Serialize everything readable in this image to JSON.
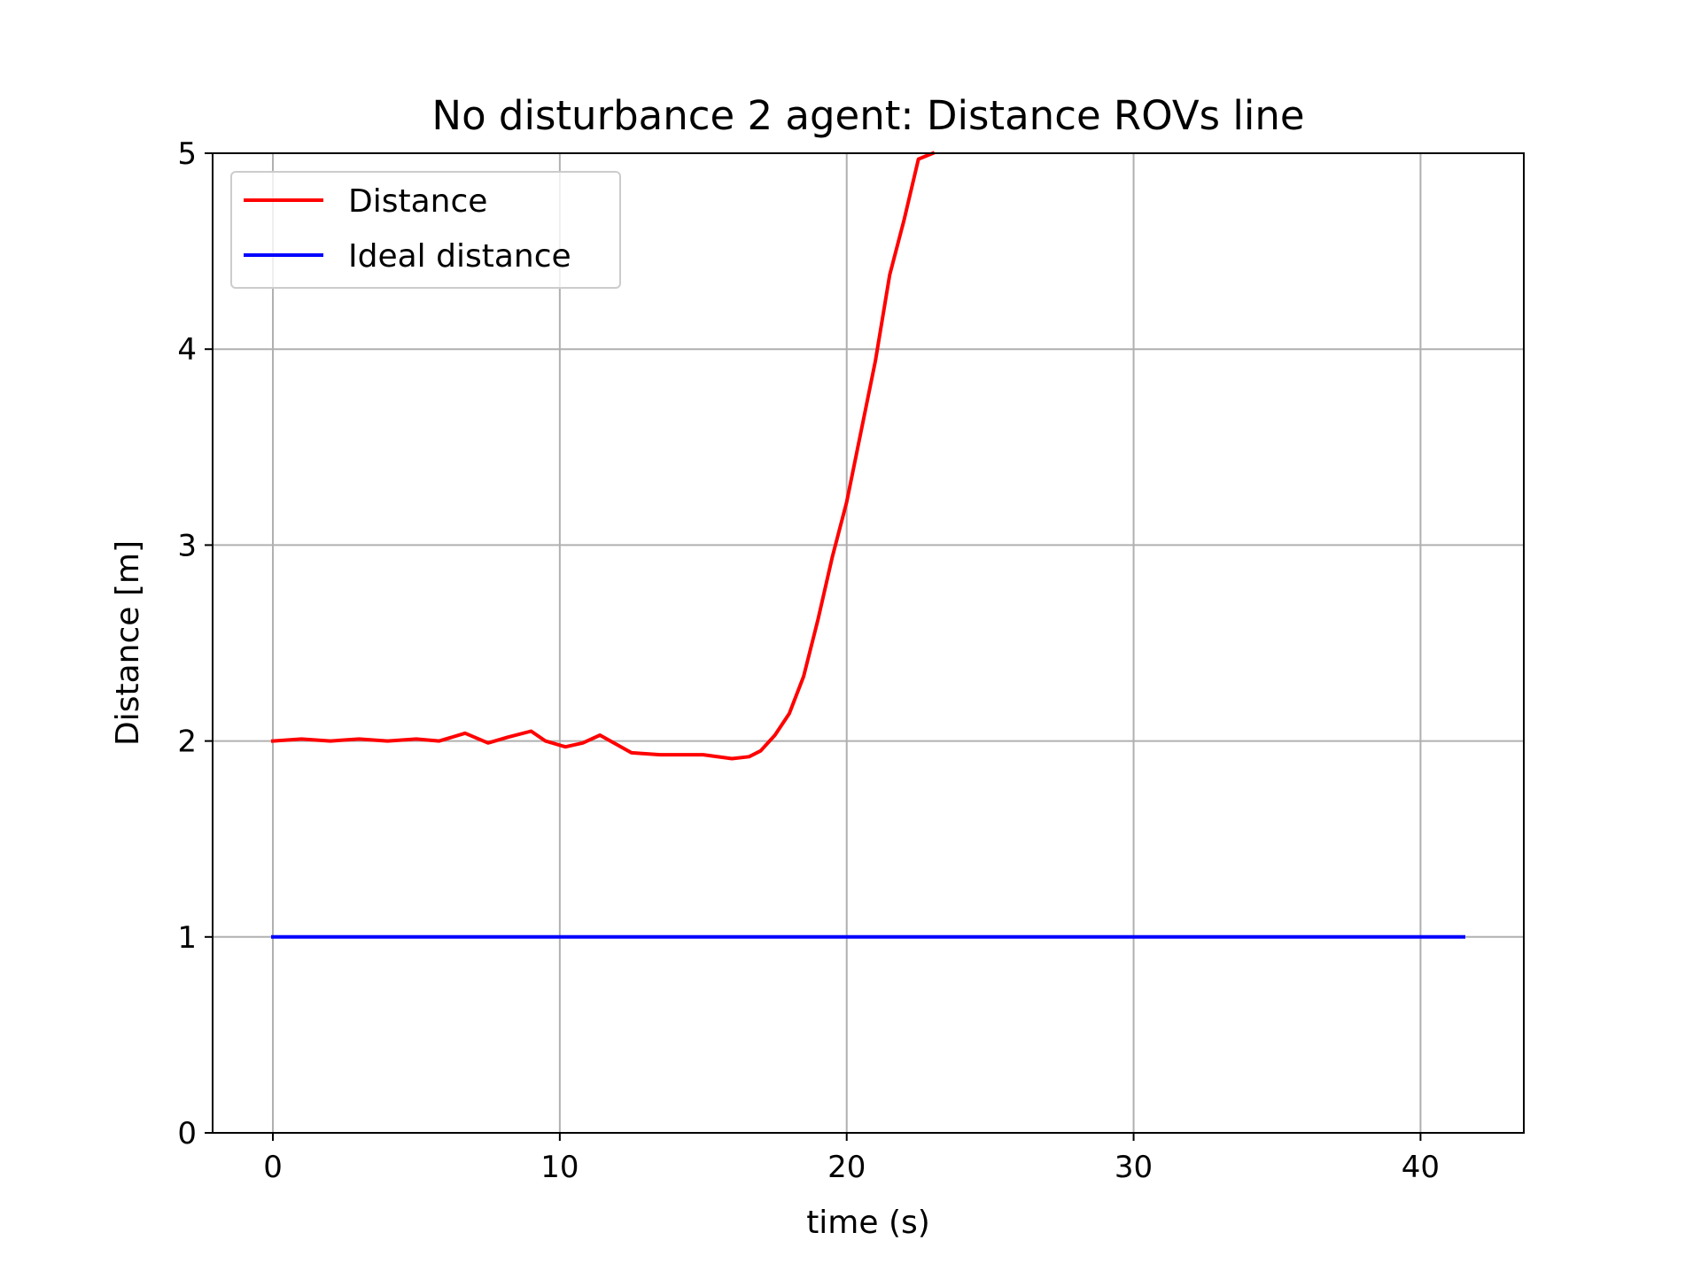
{
  "chart_data": {
    "type": "line",
    "title": "No disturbance 2 agent: Distance ROVs line",
    "xlabel": "time (s)",
    "ylabel": "Distance [m]",
    "xlim": [
      -2.1,
      43.6
    ],
    "ylim": [
      0,
      5
    ],
    "xticks": [
      0,
      10,
      20,
      30,
      40
    ],
    "yticks": [
      0,
      1,
      2,
      3,
      4,
      5
    ],
    "grid": true,
    "legend_position": "upper left",
    "series": [
      {
        "name": "Distance",
        "color": "#ff0000",
        "x": [
          0,
          1,
          2,
          3,
          4,
          5,
          5.8,
          6.7,
          7.5,
          8.2,
          9,
          9.5,
          10.2,
          10.8,
          11.4,
          12.5,
          13.5,
          15,
          16,
          16.6,
          17,
          17.5,
          18,
          18.5,
          19,
          19.5,
          20,
          20.5,
          21,
          21.5,
          22,
          22.5,
          23
        ],
        "y": [
          2.0,
          2.01,
          2.0,
          2.01,
          2.0,
          2.01,
          2.0,
          2.04,
          1.99,
          2.02,
          2.05,
          2.0,
          1.97,
          1.99,
          2.03,
          1.94,
          1.93,
          1.93,
          1.91,
          1.92,
          1.95,
          2.03,
          2.14,
          2.33,
          2.62,
          2.94,
          3.22,
          3.58,
          3.94,
          4.38,
          4.66,
          4.97,
          5.0
        ]
      },
      {
        "name": "Ideal distance",
        "color": "#0000ff",
        "x": [
          0,
          41.5
        ],
        "y": [
          1.0,
          1.0
        ]
      }
    ]
  }
}
